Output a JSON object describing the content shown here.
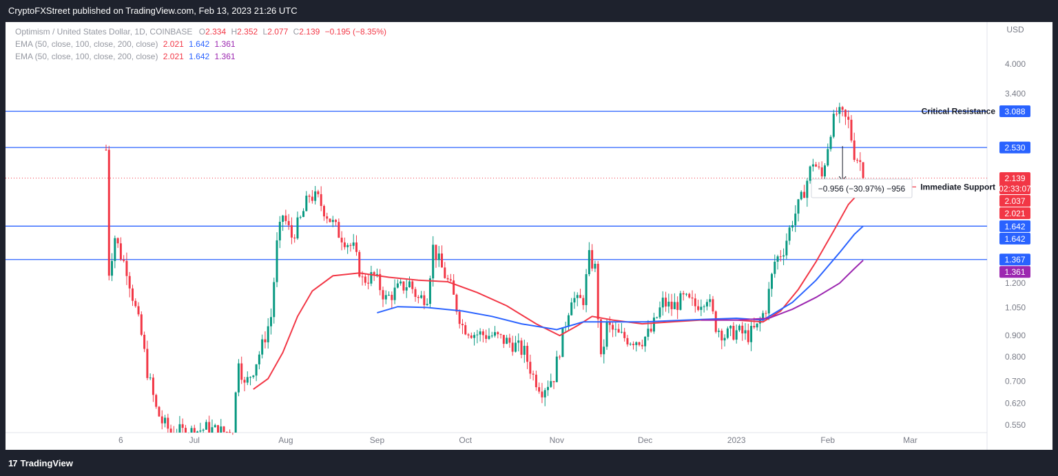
{
  "header": {
    "publisher": "CryptoFXStreet published on TradingView.com, Feb 13, 2023 21:26 UTC"
  },
  "footer": {
    "brand": "TradingView",
    "logo_glyph": "17"
  },
  "legend": {
    "symbol": "Optimism / United States Dollar, 1D, COINBASE",
    "o_label": "O",
    "o": "2.334",
    "h_label": "H",
    "h": "2.352",
    "l_label": "L",
    "l": "2.077",
    "c_label": "C",
    "c": "2.139",
    "change": "−0.195 (−8.35%)",
    "ema_rows": [
      {
        "label": "EMA (50, close, 100, close, 200, close)",
        "v1": "2.021",
        "v2": "1.642",
        "v3": "1.361"
      },
      {
        "label": "EMA (50, close, 100, close, 200, close)",
        "v1": "2.021",
        "v2": "1.642",
        "v3": "1.361"
      }
    ]
  },
  "annotations": {
    "critical_resistance": "Critical Resistance",
    "immediate_support": "Immediate Support",
    "measure": "−0.956 (−30.97%) −956"
  },
  "colors": {
    "up": "#089981",
    "down": "#f23645",
    "ema50": "#f23645",
    "ema100": "#2962ff",
    "ema200": "#9c27b0",
    "hline": "#2962ff",
    "bg": "#ffffff",
    "frame": "#1e222d"
  },
  "chart_data": {
    "type": "candlestick",
    "currency": "USD",
    "y_scale": "log",
    "ylim": [
      0.52,
      4.4
    ],
    "y_ticks": [
      "4.000",
      "3.400",
      "3.088",
      "2.530",
      "2.139",
      "1.200",
      "1.050",
      "0.900",
      "0.800",
      "0.700",
      "0.620",
      "0.550"
    ],
    "x_ticks": [
      {
        "label": "6",
        "date": "2022-06-06"
      },
      {
        "label": "Jul",
        "date": "2022-07-01"
      },
      {
        "label": "Aug",
        "date": "2022-08-01"
      },
      {
        "label": "Sep",
        "date": "2022-09-01"
      },
      {
        "label": "Oct",
        "date": "2022-10-01"
      },
      {
        "label": "Nov",
        "date": "2022-11-01"
      },
      {
        "label": "Dec",
        "date": "2022-12-01"
      },
      {
        "label": "2023",
        "date": "2023-01-01"
      },
      {
        "label": "Feb",
        "date": "2023-02-01"
      },
      {
        "label": "Mar",
        "date": "2023-03-01"
      }
    ],
    "date_range": [
      "2022-06-01",
      "2023-03-10"
    ],
    "horizontal_levels": [
      {
        "value": 3.088,
        "label": "3.088"
      },
      {
        "value": 2.53,
        "label": "2.530"
      },
      {
        "value": 1.642,
        "label": "1.642"
      },
      {
        "value": 1.367,
        "label": "1.367"
      }
    ],
    "price_labels": [
      {
        "value": 3.088,
        "text": "3.088",
        "color": "#2962ff"
      },
      {
        "value": 2.53,
        "text": "2.530",
        "color": "#2962ff"
      },
      {
        "value": 2.139,
        "text": "2.139",
        "sub": "02:33:07",
        "color": "#f23645"
      },
      {
        "value": 2.037,
        "text": "2.037",
        "color": "#f23645"
      },
      {
        "value": 2.021,
        "text": "2.021",
        "color": "#f23645"
      },
      {
        "value": 1.642,
        "text": "1.642",
        "color": "#2962ff"
      },
      {
        "value": 1.642,
        "text": "1.642",
        "color": "#2962ff"
      },
      {
        "value": 1.367,
        "text": "1.367",
        "color": "#2962ff"
      },
      {
        "value": 1.361,
        "text": "1.361",
        "color": "#9c27b0"
      }
    ],
    "last_close": 2.139,
    "immediate_support_value": 2.037,
    "close_anchors": [
      [
        "2022-06-01",
        2.5
      ],
      [
        "2022-06-02",
        1.28
      ],
      [
        "2022-06-04",
        1.55
      ],
      [
        "2022-06-06",
        1.4
      ],
      [
        "2022-06-08",
        1.3
      ],
      [
        "2022-06-10",
        1.12
      ],
      [
        "2022-06-13",
        0.9
      ],
      [
        "2022-06-15",
        0.74
      ],
      [
        "2022-06-18",
        0.6
      ],
      [
        "2022-06-20",
        0.56
      ],
      [
        "2022-06-23",
        0.53
      ],
      [
        "2022-06-30",
        0.53
      ],
      [
        "2022-07-05",
        0.54
      ],
      [
        "2022-07-10",
        0.53
      ],
      [
        "2022-07-14",
        0.53
      ],
      [
        "2022-07-16",
        0.8
      ],
      [
        "2022-07-18",
        0.68
      ],
      [
        "2022-07-21",
        0.75
      ],
      [
        "2022-07-24",
        0.85
      ],
      [
        "2022-07-27",
        1.0
      ],
      [
        "2022-07-29",
        1.48
      ],
      [
        "2022-07-31",
        1.75
      ],
      [
        "2022-08-03",
        1.55
      ],
      [
        "2022-08-06",
        1.7
      ],
      [
        "2022-08-09",
        1.95
      ],
      [
        "2022-08-12",
        1.9
      ],
      [
        "2022-08-15",
        1.75
      ],
      [
        "2022-08-19",
        1.58
      ],
      [
        "2022-08-24",
        1.45
      ],
      [
        "2022-08-27",
        1.22
      ],
      [
        "2022-08-31",
        1.25
      ],
      [
        "2022-09-04",
        1.1
      ],
      [
        "2022-09-08",
        1.16
      ],
      [
        "2022-09-12",
        1.2
      ],
      [
        "2022-09-15",
        1.1
      ],
      [
        "2022-09-18",
        1.12
      ],
      [
        "2022-09-20",
        1.46
      ],
      [
        "2022-09-23",
        1.3
      ],
      [
        "2022-09-26",
        1.17
      ],
      [
        "2022-09-28",
        1.05
      ],
      [
        "2022-09-30",
        0.95
      ],
      [
        "2022-10-04",
        0.91
      ],
      [
        "2022-10-10",
        0.9
      ],
      [
        "2022-10-17",
        0.86
      ],
      [
        "2022-10-21",
        0.82
      ],
      [
        "2022-10-24",
        0.72
      ],
      [
        "2022-10-27",
        0.67
      ],
      [
        "2022-10-31",
        0.72
      ],
      [
        "2022-11-03",
        0.9
      ],
      [
        "2022-11-06",
        1.12
      ],
      [
        "2022-11-08",
        1.08
      ],
      [
        "2022-11-10",
        1.1
      ],
      [
        "2022-11-12",
        1.38
      ],
      [
        "2022-11-14",
        1.3
      ],
      [
        "2022-11-16",
        0.78
      ],
      [
        "2022-11-18",
        0.95
      ],
      [
        "2022-11-22",
        0.9
      ],
      [
        "2022-11-26",
        0.88
      ],
      [
        "2022-11-30",
        0.88
      ],
      [
        "2022-12-03",
        0.92
      ],
      [
        "2022-12-07",
        1.08
      ],
      [
        "2022-12-10",
        1.05
      ],
      [
        "2022-12-14",
        1.1
      ],
      [
        "2022-12-18",
        1.06
      ],
      [
        "2022-12-22",
        1.12
      ],
      [
        "2022-12-25",
        0.95
      ],
      [
        "2022-12-28",
        0.9
      ],
      [
        "2023-01-01",
        0.92
      ],
      [
        "2023-01-05",
        0.9
      ],
      [
        "2023-01-08",
        0.94
      ],
      [
        "2023-01-11",
        1.05
      ],
      [
        "2023-01-14",
        1.35
      ],
      [
        "2023-01-17",
        1.45
      ],
      [
        "2023-01-20",
        1.7
      ],
      [
        "2023-01-23",
        1.9
      ],
      [
        "2023-01-27",
        2.35
      ],
      [
        "2023-01-30",
        2.15
      ],
      [
        "2023-02-02",
        2.8
      ],
      [
        "2023-02-04",
        3.05
      ],
      [
        "2023-02-06",
        3.0
      ],
      [
        "2023-02-08",
        2.9
      ],
      [
        "2023-02-10",
        2.45
      ],
      [
        "2023-02-12",
        2.334
      ],
      [
        "2023-02-13",
        2.139
      ]
    ],
    "series": [
      {
        "name": "EMA 50",
        "color": "#f23645",
        "values": [
          [
            "2022-07-21",
            0.67
          ],
          [
            "2022-07-26",
            0.71
          ],
          [
            "2022-07-31",
            0.82
          ],
          [
            "2022-08-05",
            1.0
          ],
          [
            "2022-08-10",
            1.15
          ],
          [
            "2022-08-17",
            1.25
          ],
          [
            "2022-08-26",
            1.27
          ],
          [
            "2022-09-05",
            1.24
          ],
          [
            "2022-09-15",
            1.22
          ],
          [
            "2022-09-25",
            1.21
          ],
          [
            "2022-10-05",
            1.14
          ],
          [
            "2022-10-15",
            1.06
          ],
          [
            "2022-10-25",
            0.96
          ],
          [
            "2022-11-02",
            0.9
          ],
          [
            "2022-11-08",
            0.95
          ],
          [
            "2022-11-13",
            1.0
          ],
          [
            "2022-11-20",
            0.98
          ],
          [
            "2022-11-30",
            0.96
          ],
          [
            "2022-12-10",
            0.97
          ],
          [
            "2022-12-20",
            0.98
          ],
          [
            "2023-01-01",
            0.98
          ],
          [
            "2023-01-10",
            0.97
          ],
          [
            "2023-01-16",
            1.03
          ],
          [
            "2023-01-22",
            1.16
          ],
          [
            "2023-01-28",
            1.35
          ],
          [
            "2023-02-03",
            1.6
          ],
          [
            "2023-02-08",
            1.85
          ],
          [
            "2023-02-13",
            2.021
          ]
        ]
      },
      {
        "name": "EMA 100",
        "color": "#2962ff",
        "values": [
          [
            "2022-09-01",
            1.02
          ],
          [
            "2022-09-08",
            1.055
          ],
          [
            "2022-09-18",
            1.05
          ],
          [
            "2022-09-30",
            1.03
          ],
          [
            "2022-10-10",
            1.0
          ],
          [
            "2022-10-20",
            0.96
          ],
          [
            "2022-11-01",
            0.93
          ],
          [
            "2022-11-10",
            0.97
          ],
          [
            "2022-11-20",
            0.97
          ],
          [
            "2022-12-01",
            0.97
          ],
          [
            "2022-12-15",
            0.98
          ],
          [
            "2023-01-01",
            0.99
          ],
          [
            "2023-01-10",
            0.98
          ],
          [
            "2023-01-20",
            1.08
          ],
          [
            "2023-01-28",
            1.22
          ],
          [
            "2023-02-05",
            1.42
          ],
          [
            "2023-02-10",
            1.57
          ],
          [
            "2023-02-13",
            1.642
          ]
        ]
      },
      {
        "name": "EMA 200",
        "color": "#9c27b0",
        "values": [
          [
            "2022-12-20",
            0.98
          ],
          [
            "2023-01-01",
            0.98
          ],
          [
            "2023-01-12",
            0.99
          ],
          [
            "2023-01-20",
            1.04
          ],
          [
            "2023-01-28",
            1.11
          ],
          [
            "2023-02-05",
            1.2
          ],
          [
            "2023-02-10",
            1.3
          ],
          [
            "2023-02-13",
            1.361
          ]
        ]
      }
    ]
  }
}
